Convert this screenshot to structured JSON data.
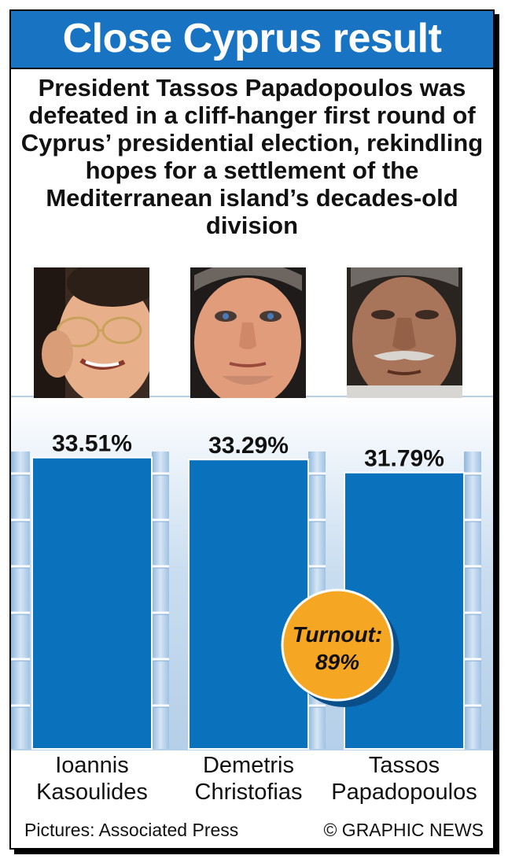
{
  "header": {
    "title": "Close Cyprus result",
    "intro": "President Tassos Papadopoulos was defeated in a cliff-hanger first round of Cyprus’ presidential election, rekindling hopes for a settlement of the Mediterranean island’s decades-old division"
  },
  "chart_data": {
    "type": "bar",
    "categories": [
      "Ioannis Kasoulides",
      "Demetris Christofias",
      "Tassos Papadopoulos"
    ],
    "category_lines": [
      [
        "Ioannis",
        "Kasoulides"
      ],
      [
        "Demetris",
        "Christofias"
      ],
      [
        "Tassos",
        "Papadopoulos"
      ]
    ],
    "values": [
      33.51,
      33.29,
      31.79
    ],
    "value_labels": [
      "33.51%",
      "33.29%",
      "31.79%"
    ],
    "ylim": [
      0,
      40
    ],
    "grid": true,
    "bar_color": "#0a72bd",
    "annotation": {
      "line1": "Turnout:",
      "line2": "89%",
      "color": "#f5a623"
    }
  },
  "footer": {
    "credit": "Pictures: Associated Press",
    "copyright": "© GRAPHIC NEWS"
  }
}
